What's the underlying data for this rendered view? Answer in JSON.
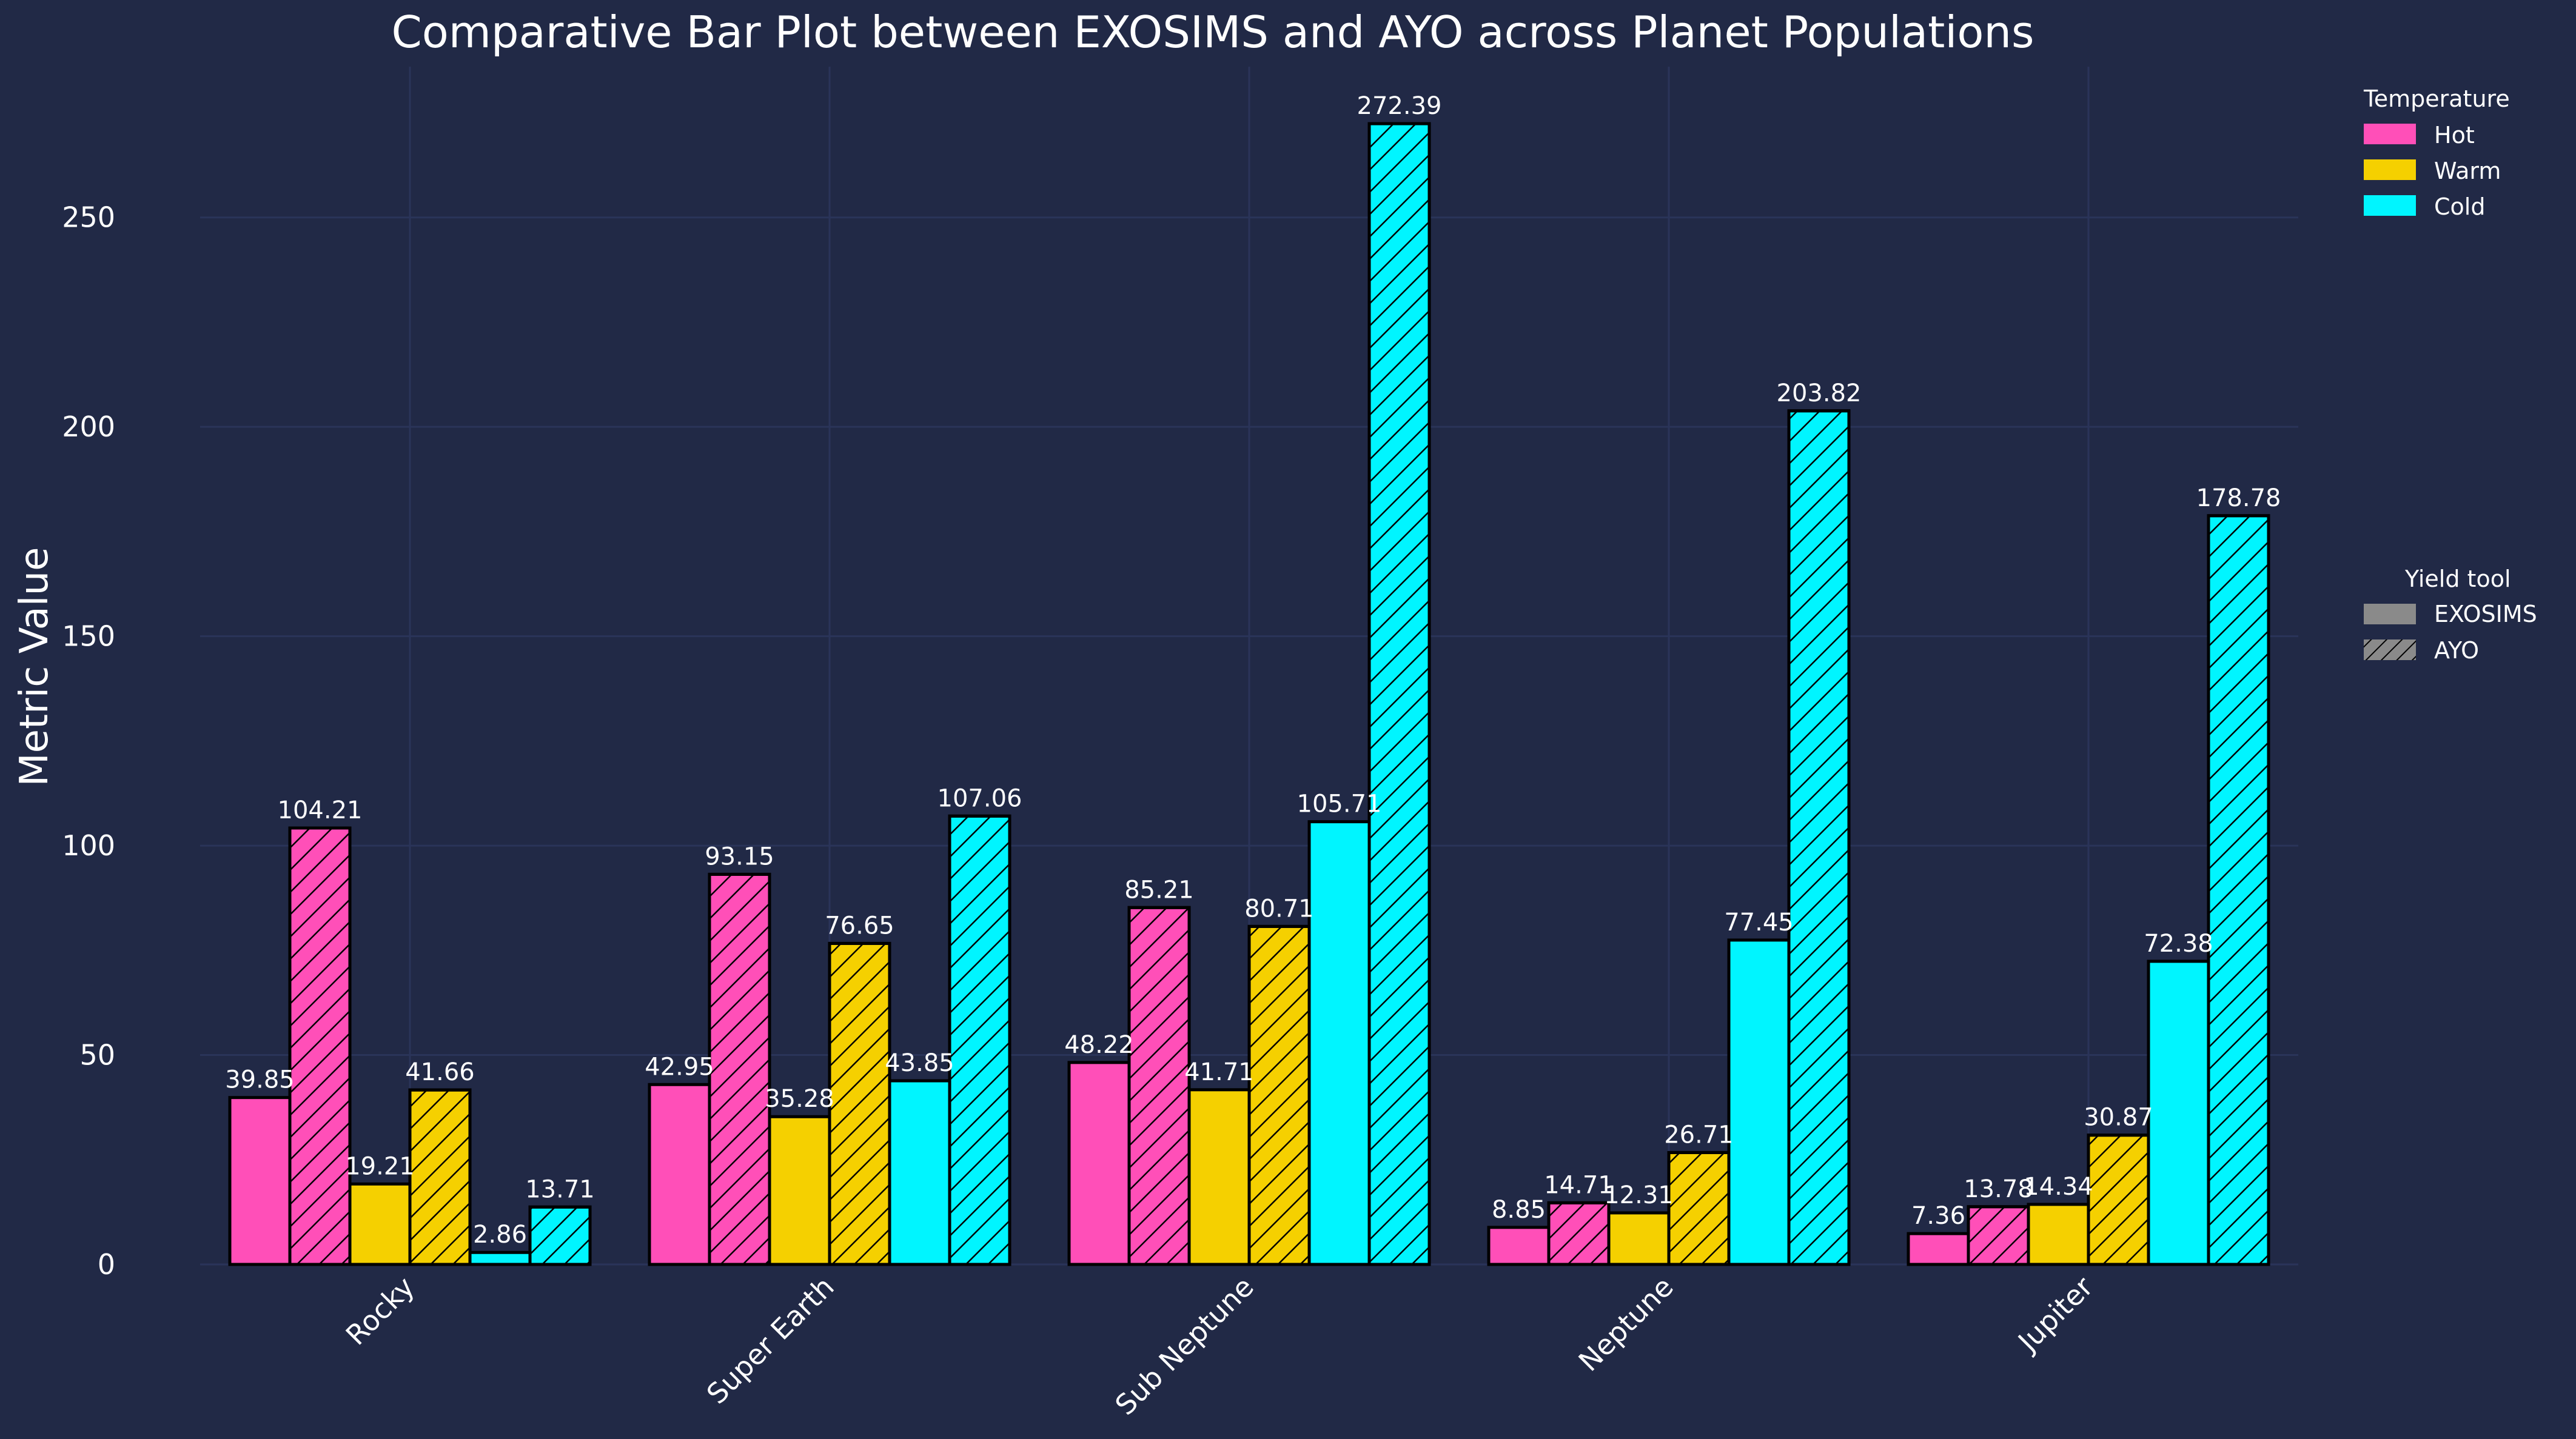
{
  "colors": {
    "background": "#212946",
    "grid": "#2A3459",
    "text": "#FFFFFF",
    "hot": "#FF4FB8",
    "warm": "#F5D000",
    "cold": "#00F5FF",
    "outline": "#000000",
    "legend_gray": "#8A8A8A"
  },
  "chart_data": {
    "type": "bar",
    "title": "Comparative Bar Plot between EXOSIMS and AYO across Planet Populations",
    "xlabel": "",
    "ylabel": "Metric Value",
    "ylim": [
      0,
      286
    ],
    "yticks": [
      0,
      50,
      100,
      150,
      200,
      250
    ],
    "grid": true,
    "categories": [
      "Rocky",
      "Super Earth",
      "Sub Neptune",
      "Neptune",
      "Jupiter"
    ],
    "series": [
      {
        "name": "Hot EXOSIMS",
        "temperature": "Hot",
        "tool": "EXOSIMS",
        "values": [
          39.85,
          42.95,
          48.22,
          8.85,
          7.36
        ]
      },
      {
        "name": "Hot AYO",
        "temperature": "Hot",
        "tool": "AYO",
        "values": [
          104.21,
          93.15,
          85.21,
          14.71,
          13.78
        ]
      },
      {
        "name": "Warm EXOSIMS",
        "temperature": "Warm",
        "tool": "EXOSIMS",
        "values": [
          19.21,
          35.28,
          41.71,
          12.31,
          14.34
        ]
      },
      {
        "name": "Warm AYO",
        "temperature": "Warm",
        "tool": "AYO",
        "values": [
          41.66,
          76.65,
          80.71,
          26.71,
          30.87
        ]
      },
      {
        "name": "Cold EXOSIMS",
        "temperature": "Cold",
        "tool": "EXOSIMS",
        "values": [
          2.86,
          43.85,
          105.71,
          77.45,
          72.38
        ]
      },
      {
        "name": "Cold AYO",
        "temperature": "Cold",
        "tool": "AYO",
        "values": [
          13.71,
          107.06,
          272.39,
          203.82,
          178.78
        ]
      }
    ],
    "legend_temperature": {
      "title": "Temperature",
      "placement": "top-right outside",
      "entries": [
        "Hot",
        "Warm",
        "Cold"
      ]
    },
    "legend_tool": {
      "title": "Yield tool",
      "placement": "right outside",
      "entries": [
        "EXOSIMS",
        "AYO"
      ]
    }
  }
}
